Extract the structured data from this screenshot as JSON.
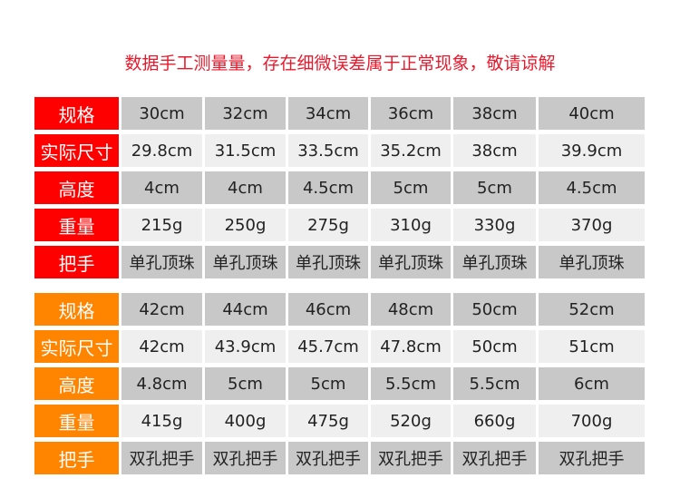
{
  "notice": "数据手工测量量，存在细微误差属于正常现象，敬请谅解",
  "colors": {
    "notice": "#e8192c",
    "table1_label_bg": "#ff0000",
    "table2_label_bg": "#ff8400",
    "row_dark": "#c8c8c8",
    "row_light": "#efefef"
  },
  "table1": [
    {
      "label": "规格",
      "values": [
        "30cm",
        "32cm",
        "34cm",
        "36cm",
        "38cm",
        "40cm"
      ]
    },
    {
      "label": "实际尺寸",
      "values": [
        "29.8cm",
        "31.5cm",
        "33.5cm",
        "35.2cm",
        "38cm",
        "39.9cm"
      ]
    },
    {
      "label": "高度",
      "values": [
        "4cm",
        "4cm",
        "4.5cm",
        "5cm",
        "5cm",
        "4.5cm"
      ]
    },
    {
      "label": "重量",
      "values": [
        "215g",
        "250g",
        "275g",
        "310g",
        "330g",
        "370g"
      ]
    },
    {
      "label": "把手",
      "values": [
        "单孔顶珠",
        "单孔顶珠",
        "单孔顶珠",
        "单孔顶珠",
        "单孔顶珠",
        "单孔顶珠"
      ]
    }
  ],
  "table2": [
    {
      "label": "规格",
      "values": [
        "42cm",
        "44cm",
        "46cm",
        "48cm",
        "50cm",
        "52cm"
      ]
    },
    {
      "label": "实际尺寸",
      "values": [
        "42cm",
        "43.9cm",
        "45.7cm",
        "47.8cm",
        "50cm",
        "51cm"
      ]
    },
    {
      "label": "高度",
      "values": [
        "4.8cm",
        "5cm",
        "5cm",
        "5.5cm",
        "5.5cm",
        "6cm"
      ]
    },
    {
      "label": "重量",
      "values": [
        "415g",
        "400g",
        "475g",
        "520g",
        "660g",
        "700g"
      ]
    },
    {
      "label": "把手",
      "values": [
        "双孔把手",
        "双孔把手",
        "双孔把手",
        "双孔把手",
        "双孔把手",
        "双孔把手"
      ]
    }
  ]
}
